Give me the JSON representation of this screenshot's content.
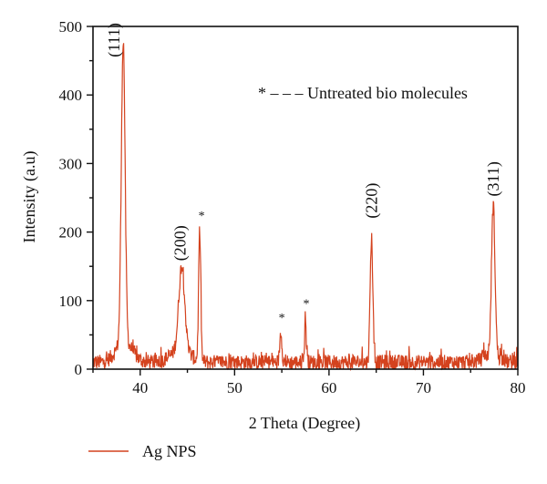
{
  "chart_data": {
    "type": "line",
    "xlabel": "2 Theta (Degree)",
    "ylabel": "Intensity (a.u)",
    "xlim": [
      35,
      80
    ],
    "ylim": [
      0,
      500
    ],
    "x_ticks": [
      40,
      50,
      60,
      70,
      80
    ],
    "y_ticks": [
      0,
      100,
      200,
      300,
      400,
      500
    ],
    "x_tick_labels": [
      "40",
      "50",
      "60",
      "70",
      "80"
    ],
    "y_tick_labels": [
      "0",
      "100",
      "200",
      "300",
      "400",
      "500"
    ],
    "grid": false,
    "legend_position": "bottom-left",
    "series": [
      {
        "name": "Ag NPS",
        "color": "#d4421e",
        "peaks": [
          {
            "x": 38.2,
            "y": 450
          },
          {
            "x": 44.4,
            "y": 132
          },
          {
            "x": 46.3,
            "y": 200
          },
          {
            "x": 54.9,
            "y": 55
          },
          {
            "x": 57.5,
            "y": 77
          },
          {
            "x": 64.5,
            "y": 193
          },
          {
            "x": 77.4,
            "y": 228
          }
        ],
        "baseline": 10
      }
    ],
    "annotations": {
      "peak_labels": [
        {
          "text": "(111)",
          "x": 37.2,
          "y": 455
        },
        {
          "text": "(200)",
          "x": 44.2,
          "y": 158
        },
        {
          "text": "(220)",
          "x": 64.5,
          "y": 220
        },
        {
          "text": "(311)",
          "x": 77.4,
          "y": 252
        }
      ],
      "stars": [
        {
          "text": "*",
          "x": 46.5,
          "y": 218
        },
        {
          "text": "*",
          "x": 55.0,
          "y": 69
        },
        {
          "text": "*",
          "x": 57.6,
          "y": 90
        }
      ],
      "note": "* – – – Untreated bio molecules"
    }
  }
}
